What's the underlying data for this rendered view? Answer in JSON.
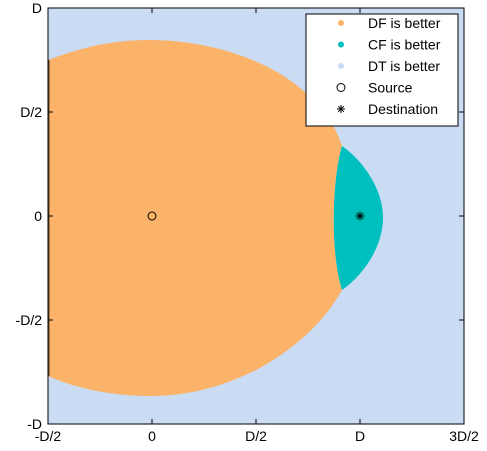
{
  "chart_data": {
    "type": "scatter",
    "title": "",
    "xlabel": "",
    "ylabel": "",
    "xlim": [
      -0.5,
      1.5
    ],
    "ylim": [
      -1,
      1
    ],
    "x_ticks": [
      {
        "value": -0.5,
        "label": "-D/2"
      },
      {
        "value": 0,
        "label": "0"
      },
      {
        "value": 0.5,
        "label": "D/2"
      },
      {
        "value": 1,
        "label": "D"
      },
      {
        "value": 1.5,
        "label": "3D/2"
      }
    ],
    "y_ticks": [
      {
        "value": 1,
        "label": "D"
      },
      {
        "value": 0.5,
        "label": "D/2"
      },
      {
        "value": 0,
        "label": "0"
      },
      {
        "value": -0.5,
        "label": "-D/2"
      },
      {
        "value": -1,
        "label": "-D"
      }
    ],
    "grid": false,
    "legend_position": "top-right",
    "series": [
      {
        "name": "DF is better",
        "marker": "dot",
        "color": "#fbb36a",
        "region": "region containing the source, bounded on the right near x = 0.92D"
      },
      {
        "name": "CF is better",
        "marker": "dot",
        "color": "#00c0bf",
        "region": "lens-shaped region around the destination, x from about 0.87D to 1.11D, y from about -0.35D to 0.35D"
      },
      {
        "name": "DT is better",
        "marker": "dot",
        "color": "#cadbf4",
        "region": "remaining area of the plot"
      },
      {
        "name": "Source",
        "marker": "open-circle",
        "color": "#000000",
        "x": [
          0
        ],
        "y": [
          0
        ]
      },
      {
        "name": "Destination",
        "marker": "asterisk",
        "color": "#000000",
        "x": [
          1
        ],
        "y": [
          0
        ]
      }
    ]
  }
}
